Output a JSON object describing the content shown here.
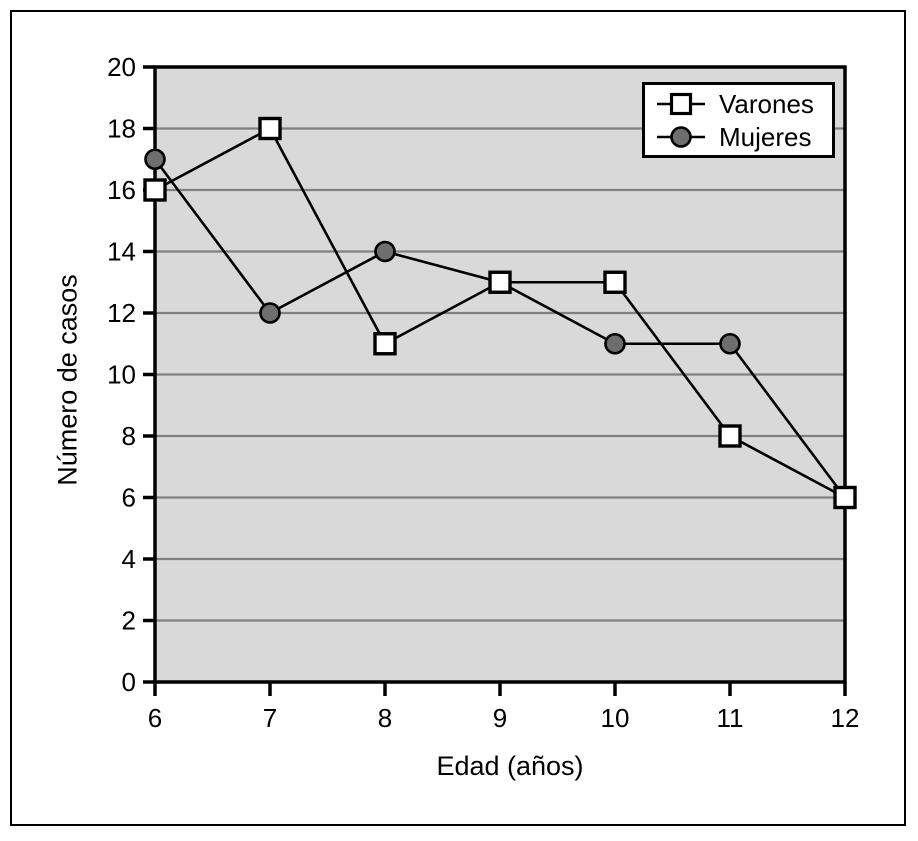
{
  "figure": {
    "background": "#ffffff",
    "frame_color": "#000000"
  },
  "chart_data": {
    "type": "line",
    "title": "",
    "xlabel": "Edad (años)",
    "ylabel": "Número de casos",
    "x": [
      6,
      7,
      8,
      9,
      10,
      11,
      12
    ],
    "series": [
      {
        "name": "Varones",
        "marker": "square",
        "marker_fill": "#ffffff",
        "values": [
          16,
          18,
          11,
          13,
          13,
          8,
          6
        ]
      },
      {
        "name": "Mujeres",
        "marker": "circle",
        "marker_fill": "#6e6e6e",
        "values": [
          17,
          12,
          14,
          13,
          11,
          11,
          6
        ]
      }
    ],
    "xlim": [
      6,
      12
    ],
    "ylim": [
      0,
      20
    ],
    "x_ticks": [
      6,
      7,
      8,
      9,
      10,
      11,
      12
    ],
    "y_ticks": [
      0,
      2,
      4,
      6,
      8,
      10,
      12,
      14,
      16,
      18,
      20
    ],
    "grid": "horizontal",
    "legend_position": "top-right",
    "plot_background": "#d9d9d9",
    "gridline_color": "#808080",
    "line_color": "#000000"
  }
}
